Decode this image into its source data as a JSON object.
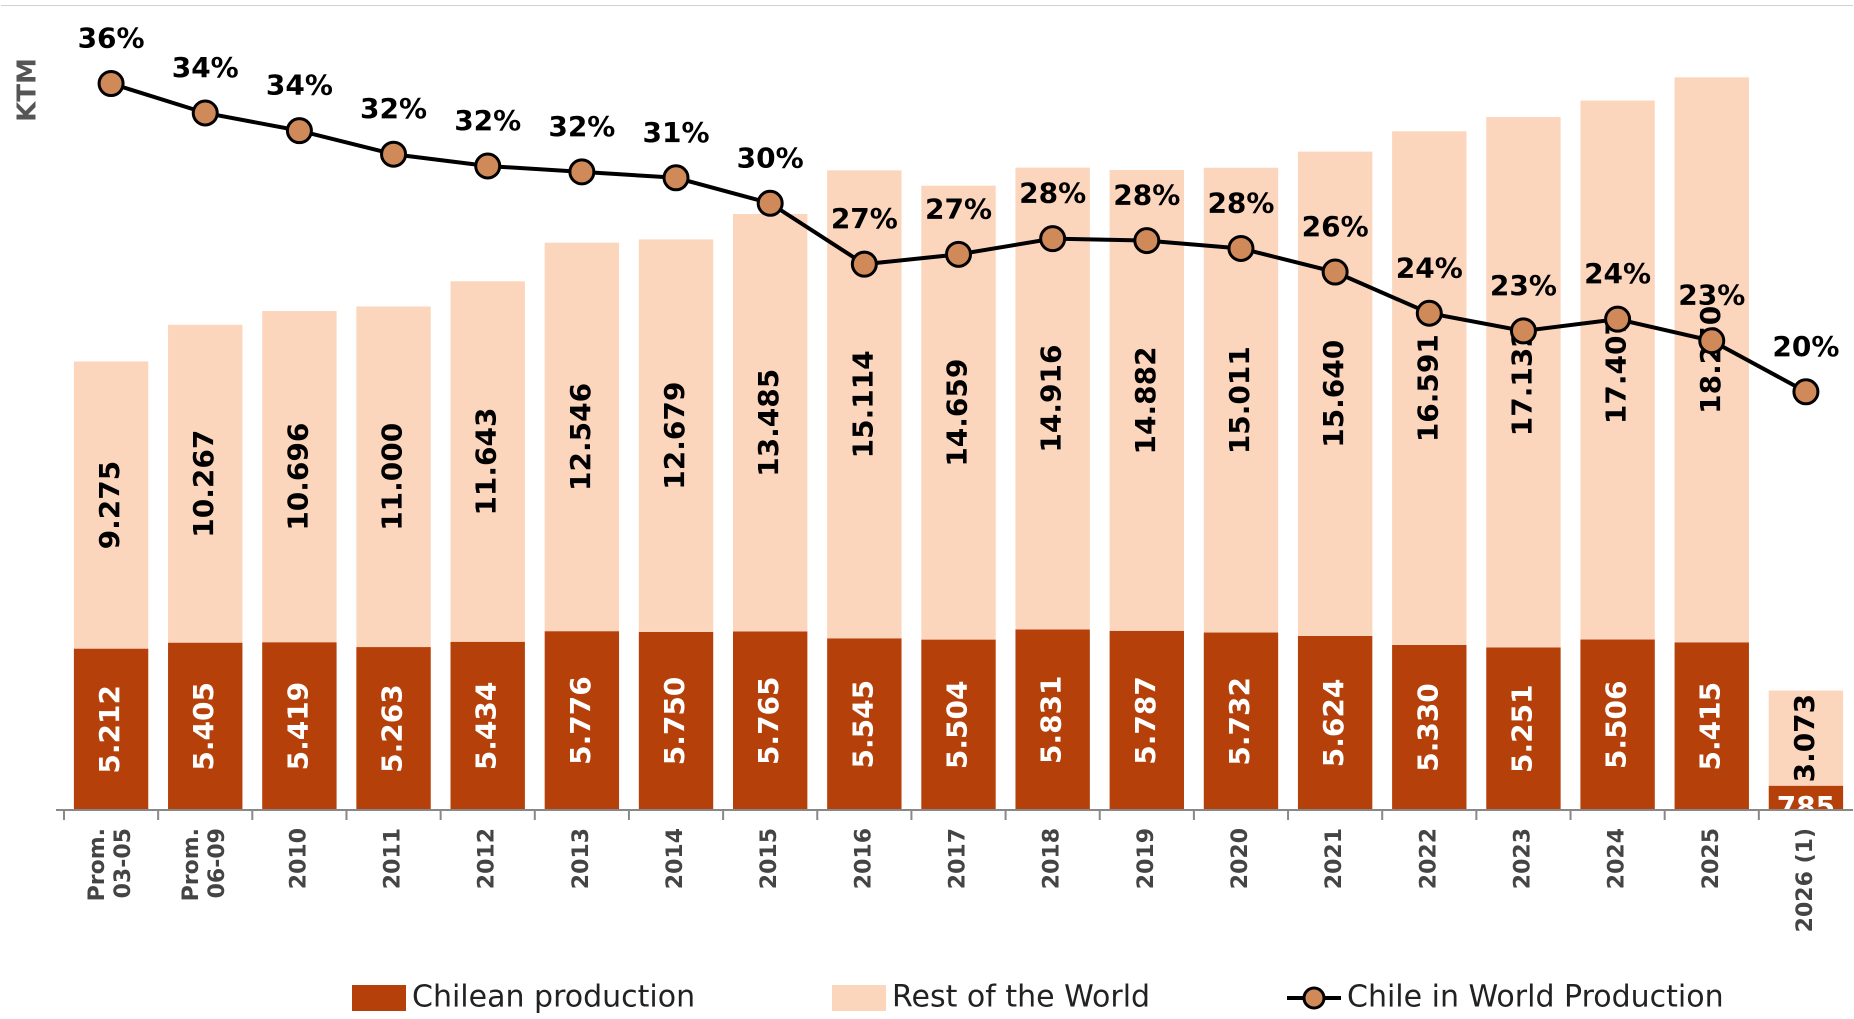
{
  "chart_data": {
    "type": "bar",
    "y_label": "KTM",
    "categories": [
      "Prom. 03-05",
      "Prom. 06-09",
      "2010",
      "2011",
      "2012",
      "2013",
      "2014",
      "2015",
      "2016",
      "2017",
      "2018",
      "2019",
      "2020",
      "2021",
      "2022",
      "2023",
      "2024",
      "2025",
      "2026 (1)"
    ],
    "stacked": true,
    "ylim": [
      0,
      26000
    ],
    "y2lim": [
      -1,
      40
    ],
    "series": [
      {
        "name": "Chilean production",
        "type": "bar",
        "color": "#b5400a",
        "values": [
          5212,
          5405,
          5419,
          5263,
          5434,
          5776,
          5750,
          5765,
          5545,
          5504,
          5831,
          5787,
          5732,
          5624,
          5330,
          5251,
          5506,
          5415,
          785
        ],
        "value_labels": [
          "5.212",
          "5.405",
          "5.419",
          "5.263",
          "5.434",
          "5.776",
          "5.750",
          "5.765",
          "5.545",
          "5.504",
          "5.831",
          "5.787",
          "5.732",
          "5.624",
          "5.330",
          "5.251",
          "5.506",
          "5.415",
          "785"
        ]
      },
      {
        "name": "Rest of the World",
        "type": "bar",
        "color": "#fcd5bd",
        "values": [
          9275,
          10267,
          10696,
          11000,
          11643,
          12546,
          12679,
          13485,
          15114,
          14659,
          14916,
          14882,
          15011,
          15640,
          16591,
          17132,
          17407,
          18250,
          3073
        ],
        "value_labels": [
          "9.275",
          "10.267",
          "10.696",
          "11.000",
          "11.643",
          "12.546",
          "12.679",
          "13.485",
          "15.114",
          "14.659",
          "14.916",
          "14.882",
          "15.011",
          "15.640",
          "16.591",
          "17.132",
          "17.407",
          "18.250",
          "3.073"
        ]
      },
      {
        "name": "Chile in World Production",
        "type": "line",
        "axis": "y2",
        "color": "#000000",
        "marker_color": "#d08a5a",
        "values": [
          36.0,
          34.5,
          33.6,
          32.4,
          31.8,
          31.5,
          31.2,
          29.9,
          26.8,
          27.3,
          28.1,
          28.0,
          27.6,
          26.4,
          24.3,
          23.4,
          24.0,
          22.9,
          20.3
        ],
        "value_labels": [
          "36%",
          "34%",
          "34%",
          "32%",
          "32%",
          "32%",
          "31%",
          "30%",
          "27%",
          "27%",
          "28%",
          "28%",
          "28%",
          "26%",
          "24%",
          "23%",
          "24%",
          "23%",
          "20%"
        ]
      }
    ],
    "legend": "bottom"
  }
}
